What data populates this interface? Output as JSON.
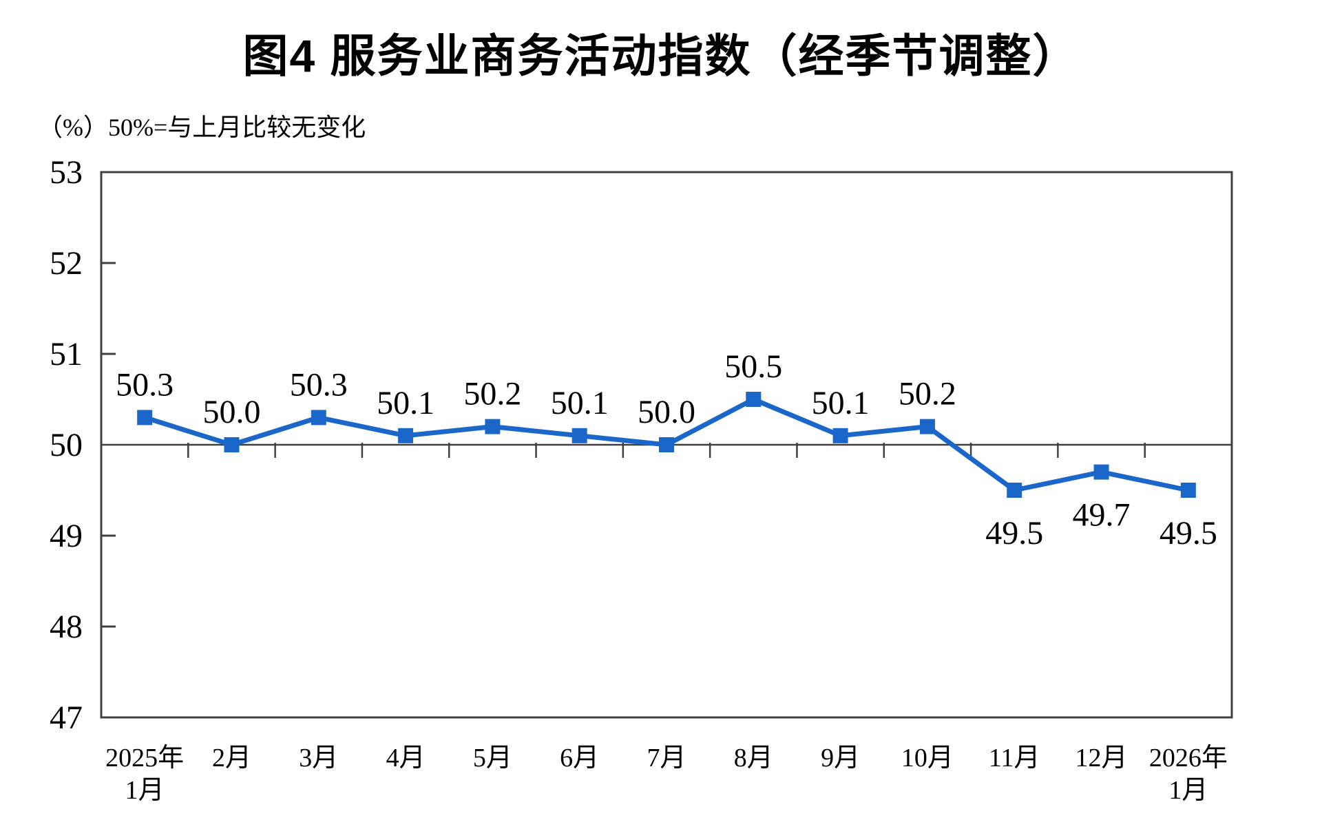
{
  "chart_data": {
    "type": "line",
    "title": "图4  服务业商务活动指数（经季节调整）",
    "subtitle": "（%）50%=与上月比较无变化",
    "categories": [
      [
        "2025年",
        "1月"
      ],
      [
        "2月"
      ],
      [
        "3月"
      ],
      [
        "4月"
      ],
      [
        "5月"
      ],
      [
        "6月"
      ],
      [
        "7月"
      ],
      [
        "8月"
      ],
      [
        "9月"
      ],
      [
        "10月"
      ],
      [
        "11月"
      ],
      [
        "12月"
      ],
      [
        "2026年",
        "1月"
      ]
    ],
    "series": [
      {
        "name": "服务业商务活动指数",
        "values": [
          50.3,
          50.0,
          50.3,
          50.1,
          50.2,
          50.1,
          50.0,
          50.5,
          50.1,
          50.2,
          49.5,
          49.7,
          49.5
        ]
      }
    ],
    "data_labels": [
      "50.3",
      "50.0",
      "50.3",
      "50.1",
      "50.2",
      "50.1",
      "50.0",
      "50.5",
      "50.1",
      "50.2",
      "49.5",
      "49.7",
      "49.5"
    ],
    "label_positions": [
      "above",
      "above",
      "above",
      "above",
      "above",
      "above",
      "above",
      "above",
      "above",
      "above",
      "below",
      "below",
      "below"
    ],
    "ylim": [
      47,
      53
    ],
    "yticks": [
      53,
      52,
      51,
      50,
      49,
      48,
      47
    ],
    "reference_line": 50,
    "grid": "off",
    "legend": "none",
    "series_color": "#1B67C9",
    "axis_color": "#3F3F3F",
    "label_color": "#000000"
  }
}
